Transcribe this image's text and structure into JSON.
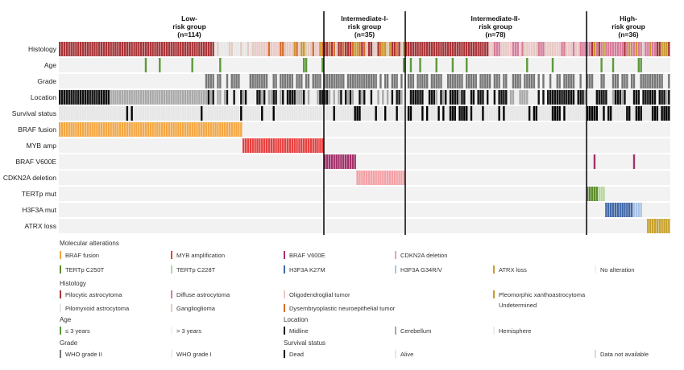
{
  "groups": [
    {
      "title": "Low-\nrisk group\n(n=114)",
      "n": 114
    },
    {
      "title": "Intermediate-I-\nrisk group\n(n=35)",
      "n": 35
    },
    {
      "title": "Intermediate-II-\nrisk group\n(n=78)",
      "n": 78
    },
    {
      "title": "High-\nrisk group\n(n=36)",
      "n": 36
    }
  ],
  "rows": [
    "Histology",
    "Age",
    "Grade",
    "Location",
    "Survival status",
    "BRAF fusion",
    "MYB amp",
    "BRAF V600E",
    "CDKN2A deletion",
    "TERTp mut",
    "H3F3A mut",
    "ATRX loss"
  ],
  "legend": {
    "molecular_title": "Molecular alterations",
    "molecular": [
      {
        "label": "BRAF fusion",
        "color": "#f5a742"
      },
      {
        "label": "MYB amplification",
        "color": "#e8403f"
      },
      {
        "label": "BRAF V600E",
        "color": "#a3306a"
      },
      {
        "label": "CDKN2A deletion",
        "color": "#f4a0a5"
      },
      {
        "label": "TERTp C250T",
        "color": "#5d8c2d"
      },
      {
        "label": "TERTp C228T",
        "color": "#b7d69a"
      },
      {
        "label": "H3F3A K27M",
        "color": "#3f67a8"
      },
      {
        "label": "H3F3A G34R/V",
        "color": "#a9c3e6"
      },
      {
        "label": "ATRX loss",
        "color": "#c7a12b"
      },
      {
        "label": "No alteration",
        "color": "#f2f2f2"
      }
    ],
    "histology_title": "Histology",
    "histology": [
      {
        "label": "Pilocytic astrocytoma",
        "color": "#a83438"
      },
      {
        "label": "Diffuse astrocytoma",
        "color": "#d87a9a"
      },
      {
        "label": "Oligodendroglial tumor",
        "color": "#f1c7c9"
      },
      {
        "label": "Pleomorphic xanthoastrocytoma",
        "color": "#c79a2a"
      },
      {
        "label": "Pilomyxoid astrocytoma",
        "color": "#e8e8e8"
      },
      {
        "label": "Ganglioglioma",
        "color": "#e3cbc1"
      },
      {
        "label": "Dysembryoplastic neuroepithelial tumor",
        "color": "#d86c2c"
      },
      {
        "label": "Undetermined",
        "color": "#ffffff"
      }
    ],
    "age_title": "Age",
    "age": [
      {
        "label": "≤ 3 years",
        "color": "#5d9a3a"
      },
      {
        "label": "> 3 years",
        "color": "#f4f4f4"
      }
    ],
    "location_title": "Location",
    "location": [
      {
        "label": "Midline",
        "color": "#111111"
      },
      {
        "label": "Cerebellum",
        "color": "#a8a8a8"
      },
      {
        "label": "Hemisphere",
        "color": "#eeeeee"
      }
    ],
    "grade_title": "Grade",
    "grade": [
      {
        "label": "WHO grade II",
        "color": "#777777"
      },
      {
        "label": "WHO grade I",
        "color": "#eeeeee"
      }
    ],
    "survival_title": "Survival status",
    "survival": [
      {
        "label": "Dead",
        "color": "#000000"
      },
      {
        "label": "Alive",
        "color": "#e6e6e6"
      }
    ],
    "na_label": "Data not available"
  },
  "colors": {
    "empty": "#f2f2f2",
    "grid": "#ffffff",
    "divider": "#111111"
  }
}
